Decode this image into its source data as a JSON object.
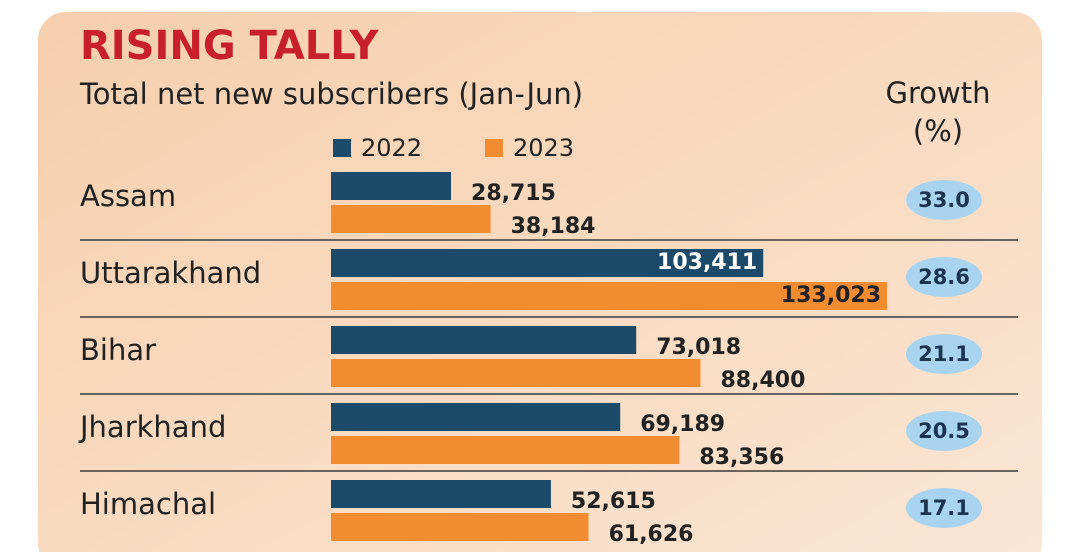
{
  "chart_data": {
    "type": "bar",
    "orientation": "horizontal",
    "title": "RISING TALLY",
    "subtitle": "Total net new subscribers (Jan-Jun)",
    "categories": [
      "Assam",
      "Uttarakhand",
      "Bihar",
      "Jharkhand",
      "Himachal"
    ],
    "series": [
      {
        "name": "2022",
        "color": "#1b4a6b",
        "values": [
          28715,
          103411,
          73018,
          69189,
          52615
        ],
        "value_labels": [
          "28,715",
          "103,411",
          "73,018",
          "69,189",
          "52,615"
        ]
      },
      {
        "name": "2023",
        "color": "#f28c30",
        "values": [
          38184,
          133023,
          88400,
          83356,
          61626
        ],
        "value_labels": [
          "38,184",
          "133,023",
          "88,400",
          "83,356",
          "61,626"
        ]
      }
    ],
    "growth": {
      "label": "Growth (%)",
      "color": "#a9d4f0",
      "values": [
        33.0,
        28.6,
        21.1,
        20.5,
        17.1
      ],
      "value_labels": [
        "33.0",
        "28.6",
        "21.1",
        "20.5",
        "17.1"
      ]
    }
  }
}
